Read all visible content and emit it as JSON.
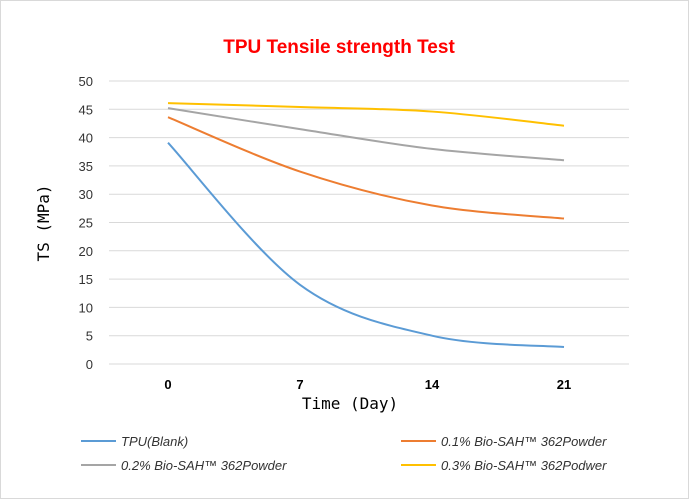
{
  "chart_data": {
    "type": "line",
    "title": "TPU Tensile strength Test",
    "xlabel": "Time (Day)",
    "ylabel": "TS (MPa)",
    "x": [
      0,
      7,
      14,
      21
    ],
    "x_tick_labels": [
      "0",
      "7",
      "14",
      "21"
    ],
    "ylim": [
      0,
      50
    ],
    "y_ticks": [
      0,
      5,
      10,
      15,
      20,
      25,
      30,
      35,
      40,
      45,
      50
    ],
    "grid": true,
    "legend_position": "bottom",
    "series": [
      {
        "name": "TPU(Blank)",
        "color": "#5b9bd5",
        "values": [
          39.1,
          14,
          5,
          3
        ]
      },
      {
        "name": "0.1% Bio-SAH™ 362Powder",
        "color": "#ed7d31",
        "values": [
          43.6,
          34,
          28,
          25.7
        ]
      },
      {
        "name": "0.2% Bio-SAH™ 362Powder",
        "color": "#a5a5a5",
        "values": [
          45.2,
          41.5,
          38,
          36
        ]
      },
      {
        "name": "0.3% Bio-SAH™ 362Podwer",
        "color": "#ffc000",
        "values": [
          46.1,
          45.4,
          44.6,
          42.1
        ]
      }
    ]
  }
}
